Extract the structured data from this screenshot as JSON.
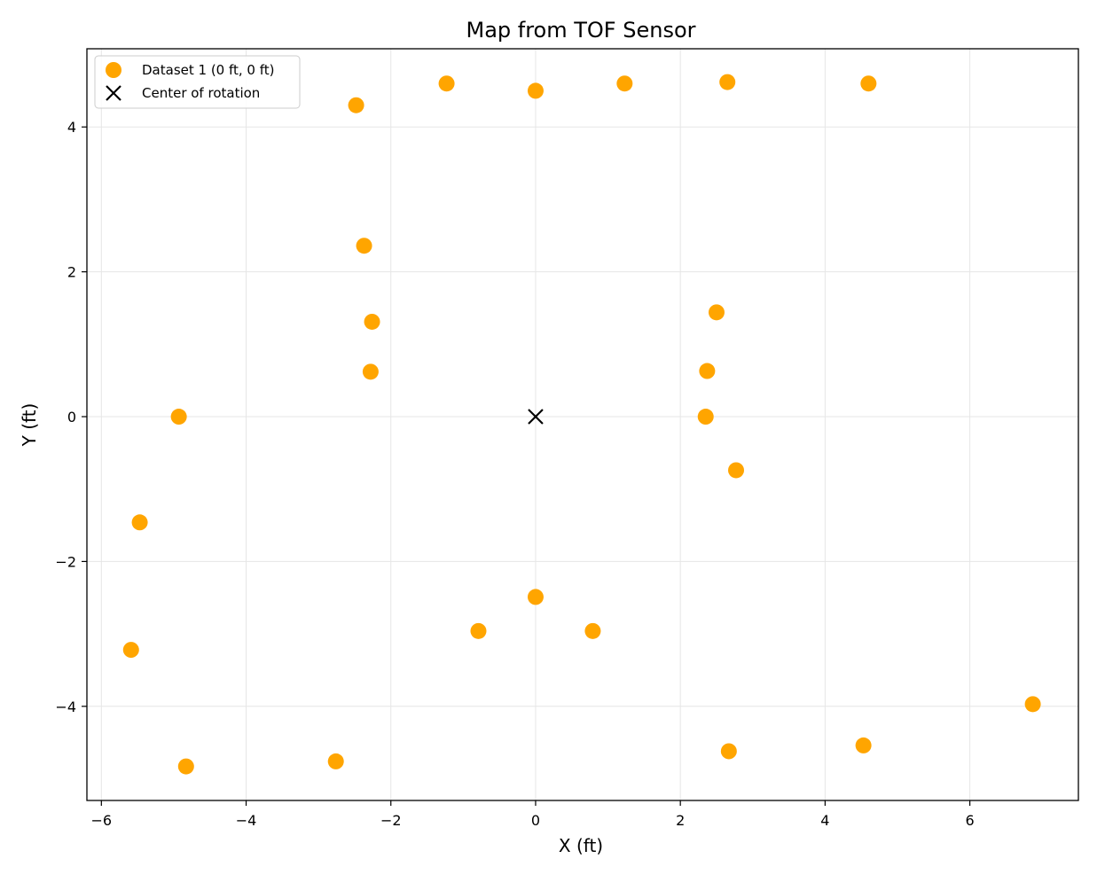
{
  "chart_data": {
    "type": "scatter",
    "title": "Map from TOF Sensor",
    "xlabel": "X (ft)",
    "ylabel": "Y (ft)",
    "xlim": [
      -6.2,
      7.5
    ],
    "ylim": [
      -5.3,
      5.08
    ],
    "xticks": [
      -6,
      -4,
      -2,
      0,
      2,
      4,
      6
    ],
    "yticks": [
      -4,
      -2,
      0,
      2,
      4
    ],
    "xtick_labels": [
      "−6",
      "−4",
      "−2",
      "0",
      "2",
      "4",
      "6"
    ],
    "ytick_labels": [
      "−4",
      "−2",
      "0",
      "2",
      "4"
    ],
    "grid": true,
    "legend_position": "top-left",
    "series": [
      {
        "name": "Dataset 1 (0 ft, 0 ft)",
        "marker": "circle",
        "color": "#FFA500",
        "points": [
          [
            -2.48,
            4.3
          ],
          [
            -1.23,
            4.6
          ],
          [
            0.0,
            4.5
          ],
          [
            1.23,
            4.6
          ],
          [
            2.65,
            4.62
          ],
          [
            4.6,
            4.6
          ],
          [
            -2.37,
            2.36
          ],
          [
            -2.26,
            1.31
          ],
          [
            -2.28,
            0.62
          ],
          [
            2.5,
            1.44
          ],
          [
            2.37,
            0.63
          ],
          [
            2.35,
            0.0
          ],
          [
            2.77,
            -0.74
          ],
          [
            -4.93,
            0.0
          ],
          [
            -5.47,
            -1.46
          ],
          [
            -5.59,
            -3.22
          ],
          [
            -4.83,
            -4.83
          ],
          [
            -2.76,
            -4.76
          ],
          [
            0.0,
            -2.49
          ],
          [
            -0.79,
            -2.96
          ],
          [
            0.79,
            -2.96
          ],
          [
            2.67,
            -4.62
          ],
          [
            4.53,
            -4.54
          ],
          [
            6.87,
            -3.97
          ]
        ]
      },
      {
        "name": "Center of rotation",
        "marker": "x",
        "color": "#000000",
        "points": [
          [
            0,
            0
          ]
        ]
      }
    ]
  }
}
